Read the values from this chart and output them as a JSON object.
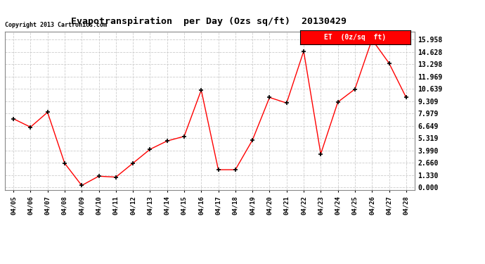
{
  "title": "Evapotranspiration  per Day (Ozs sq/ft)  20130429",
  "copyright": "Copyright 2013 Cartronics.com",
  "legend_label": "ET  (0z/sq  ft)",
  "x_labels": [
    "04/05",
    "04/06",
    "04/07",
    "04/08",
    "04/09",
    "04/10",
    "04/11",
    "04/12",
    "04/13",
    "04/14",
    "04/15",
    "04/16",
    "04/17",
    "04/18",
    "04/19",
    "04/20",
    "04/21",
    "04/22",
    "04/23",
    "04/24",
    "04/25",
    "04/26",
    "04/27",
    "04/28"
  ],
  "y_values": [
    7.4,
    6.5,
    8.1,
    2.6,
    0.2,
    1.2,
    1.1,
    2.6,
    4.1,
    5.0,
    5.5,
    10.5,
    1.9,
    1.9,
    5.1,
    9.7,
    9.1,
    14.7,
    3.6,
    9.2,
    10.6,
    15.958,
    13.4,
    9.7
  ],
  "line_color": "red",
  "marker_color": "black",
  "marker_style": "+",
  "background_color": "white",
  "grid_color": "#cccccc",
  "yticks": [
    0.0,
    1.33,
    2.66,
    3.99,
    5.319,
    6.649,
    7.979,
    9.309,
    10.639,
    11.969,
    13.298,
    14.628,
    15.958
  ],
  "ylim": [
    -0.3,
    16.8
  ],
  "legend_bg": "red",
  "legend_text_color": "white"
}
